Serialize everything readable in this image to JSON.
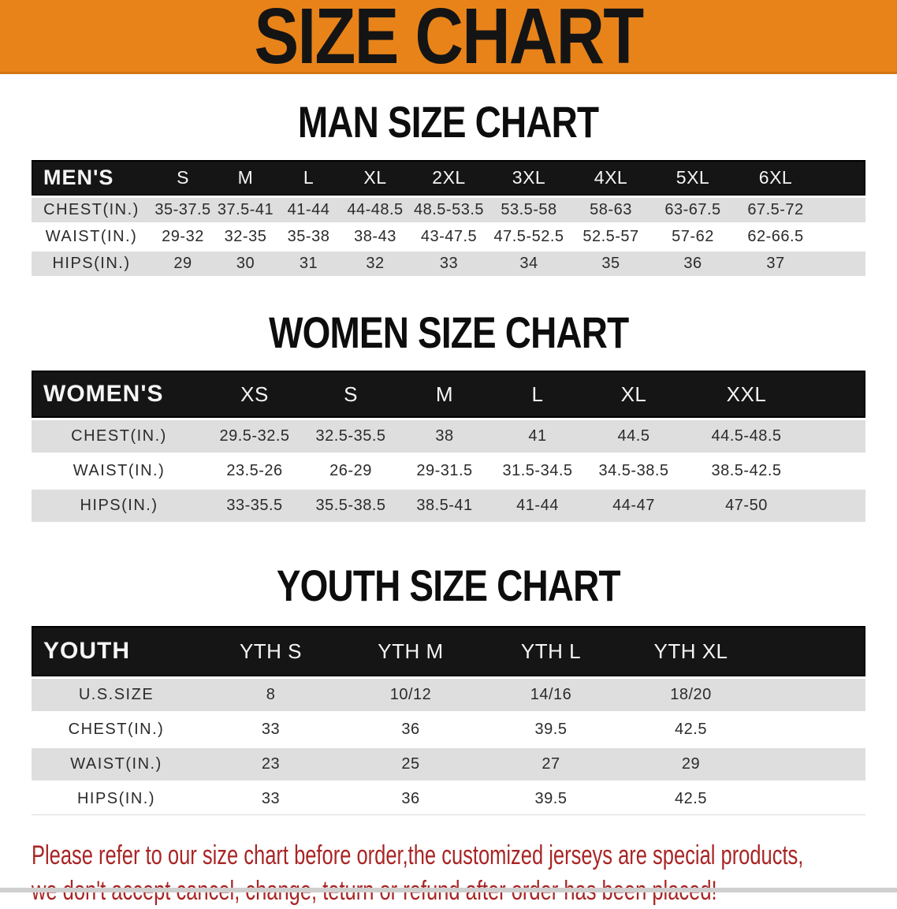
{
  "banner": {
    "title": "SIZE CHART"
  },
  "colors": {
    "banner_bg": "#E8831A",
    "header_bar_bg": "#151515",
    "row_stripe_bg": "#DEDEDE",
    "disclaimer_text": "#A92525"
  },
  "sections": [
    {
      "heading": "MAN SIZE CHART",
      "group_label": "MEN'S",
      "sizes": [
        "S",
        "M",
        "L",
        "XL",
        "2XL",
        "3XL",
        "4XL",
        "5XL",
        "6XL"
      ],
      "rows": [
        {
          "label": "CHEST(IN.)",
          "values": [
            "35-37.5",
            "37.5-41",
            "41-44",
            "44-48.5",
            "48.5-53.5",
            "53.5-58",
            "58-63",
            "63-67.5",
            "67.5-72"
          ]
        },
        {
          "label": "WAIST(IN.)",
          "values": [
            "29-32",
            "32-35",
            "35-38",
            "38-43",
            "43-47.5",
            "47.5-52.5",
            "52.5-57",
            "57-62",
            "62-66.5"
          ]
        },
        {
          "label": "HIPS(IN.)",
          "values": [
            "29",
            "30",
            "31",
            "32",
            "33",
            "34",
            "35",
            "36",
            "37"
          ]
        }
      ]
    },
    {
      "heading": "WOMEN SIZE CHART",
      "group_label": "WOMEN'S",
      "sizes": [
        "XS",
        "S",
        "M",
        "L",
        "XL",
        "XXL"
      ],
      "rows": [
        {
          "label": "CHEST(IN.)",
          "values": [
            "29.5-32.5",
            "32.5-35.5",
            "38",
            "41",
            "44.5",
            "44.5-48.5"
          ]
        },
        {
          "label": "WAIST(IN.)",
          "values": [
            "23.5-26",
            "26-29",
            "29-31.5",
            "31.5-34.5",
            "34.5-38.5",
            "38.5-42.5"
          ]
        },
        {
          "label": "HIPS(IN.)",
          "values": [
            "33-35.5",
            "35.5-38.5",
            "38.5-41",
            "41-44",
            "44-47",
            "47-50"
          ]
        }
      ]
    },
    {
      "heading": "YOUTH SIZE CHART",
      "group_label": "YOUTH",
      "sizes": [
        "YTH S",
        "YTH M",
        "YTH L",
        "YTH XL"
      ],
      "rows": [
        {
          "label": "U.S.SIZE",
          "values": [
            "8",
            "10/12",
            "14/16",
            "18/20"
          ]
        },
        {
          "label": "CHEST(IN.)",
          "values": [
            "33",
            "36",
            "39.5",
            "42.5"
          ]
        },
        {
          "label": "WAIST(IN.)",
          "values": [
            "23",
            "25",
            "27",
            "29"
          ]
        },
        {
          "label": "HIPS(IN.)",
          "values": [
            "33",
            "36",
            "39.5",
            "42.5"
          ]
        }
      ]
    }
  ],
  "disclaimer": {
    "line1": "Please refer to our size chart before order,the customized jerseys are special products,",
    "line2": "we don't accept cancel, change, teturn or refund after order has been placed!"
  }
}
